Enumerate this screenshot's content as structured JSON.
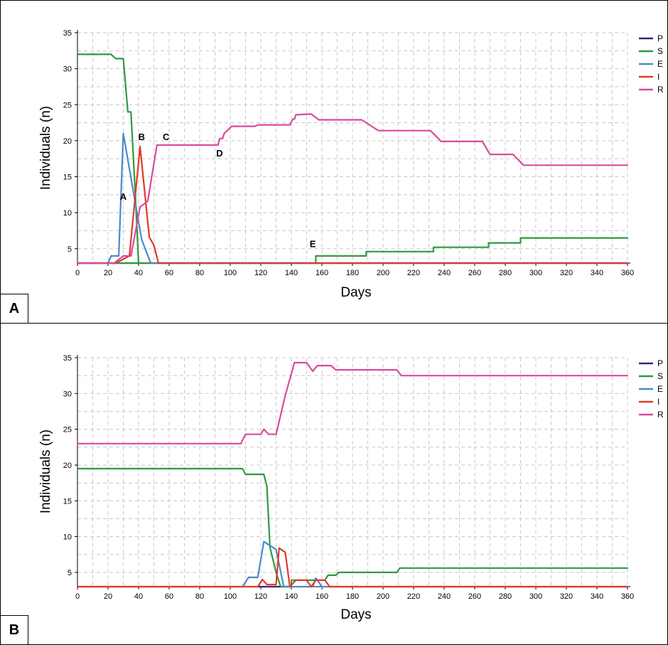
{
  "chart_data": [
    {
      "panel_label": "A",
      "type": "line",
      "xlabel": "Days",
      "ylabel": "Individuals (n)",
      "xlim": [
        0,
        360
      ],
      "ylim": [
        3,
        35
      ],
      "xticks": [
        0,
        20,
        40,
        60,
        80,
        100,
        120,
        140,
        160,
        180,
        200,
        220,
        240,
        260,
        280,
        300,
        320,
        340,
        360
      ],
      "yticks": [
        {
          "value": 5,
          "label": "5"
        },
        {
          "value": 10,
          "label": "10"
        },
        {
          "value": 15,
          "label": "15"
        },
        {
          "value": 20,
          "label": "20"
        },
        {
          "value": 25,
          "label": "25"
        },
        {
          "value": 30,
          "label": "30"
        },
        {
          "value": 35,
          "label": "35"
        }
      ],
      "grid": true,
      "legend_position": "right",
      "series": [
        {
          "name": "P",
          "color": "#2b2b7a",
          "points": [
            [
              0,
              3
            ],
            [
              360,
              3
            ]
          ]
        },
        {
          "name": "S",
          "color": "#2e9a3e",
          "points": [
            [
              0,
              3
            ],
            [
              156,
              3
            ],
            [
              156,
              4
            ],
            [
              189,
              4
            ],
            [
              189,
              4.6
            ],
            [
              233,
              4.6
            ],
            [
              233,
              5.2
            ],
            [
              269,
              5.2
            ],
            [
              269,
              5.8
            ],
            [
              290,
              5.8
            ],
            [
              290,
              6.5
            ],
            [
              360,
              6.5
            ]
          ]
        },
        {
          "name": "S",
          "color": "#2e9a3e",
          "points": [
            [
              0,
              32
            ],
            [
              22,
              32
            ],
            [
              25,
              31.4
            ],
            [
              30,
              31.4
            ],
            [
              33,
              24
            ],
            [
              35,
              24
            ],
            [
              38,
              12
            ],
            [
              40,
              3
            ]
          ]
        },
        {
          "name": "E",
          "color": "#4a8ac9",
          "points": [
            [
              0,
              3
            ],
            [
              20,
              3
            ],
            [
              22,
              4
            ],
            [
              27,
              4
            ],
            [
              30,
              21
            ],
            [
              42,
              6.3
            ],
            [
              45,
              4.6
            ],
            [
              48,
              3
            ],
            [
              360,
              3
            ]
          ]
        },
        {
          "name": "I",
          "color": "#e03a2b",
          "points": [
            [
              0,
              3
            ],
            [
              25,
              3
            ],
            [
              34,
              4
            ],
            [
              41,
              19.2
            ],
            [
              47,
              6.6
            ],
            [
              50,
              5.5
            ],
            [
              53,
              3
            ],
            [
              360,
              3
            ]
          ]
        },
        {
          "name": "R",
          "color": "#d94b9b",
          "points": [
            [
              0,
              3
            ],
            [
              24,
              3
            ],
            [
              30,
              4
            ],
            [
              35,
              4
            ],
            [
              41,
              10.8
            ],
            [
              46,
              11.6
            ],
            [
              52,
              19.4
            ],
            [
              92,
              19.4
            ],
            [
              93,
              20.3
            ],
            [
              95,
              20.3
            ],
            [
              96,
              21
            ],
            [
              101,
              22
            ],
            [
              116,
              22
            ],
            [
              118,
              22.2
            ],
            [
              139,
              22.2
            ],
            [
              141,
              23
            ],
            [
              142,
              23
            ],
            [
              143,
              23.6
            ],
            [
              153,
              23.7
            ],
            [
              158,
              22.9
            ],
            [
              186,
              22.9
            ],
            [
              197,
              21.4
            ],
            [
              231,
              21.4
            ],
            [
              238,
              19.9
            ],
            [
              265,
              19.9
            ],
            [
              270,
              18.1
            ],
            [
              285,
              18.1
            ],
            [
              292,
              16.6
            ],
            [
              360,
              16.6
            ]
          ]
        }
      ],
      "annotations": [
        {
          "text": "A",
          "x": 30,
          "y": 11.8
        },
        {
          "text": "B",
          "x": 42,
          "y": 20.1
        },
        {
          "text": "C",
          "x": 58,
          "y": 20.1
        },
        {
          "text": "D",
          "x": 93,
          "y": 17.8
        },
        {
          "text": "E",
          "x": 154,
          "y": 5.2
        }
      ]
    },
    {
      "panel_label": "B",
      "type": "line",
      "xlabel": "Days",
      "ylabel": "Individuals (n)",
      "xlim": [
        0,
        360
      ],
      "ylim": [
        3,
        35
      ],
      "xticks": [
        0,
        20,
        40,
        60,
        80,
        100,
        120,
        140,
        160,
        180,
        200,
        220,
        240,
        260,
        280,
        300,
        320,
        340,
        360
      ],
      "yticks": [
        {
          "value": 5,
          "label": "5"
        },
        {
          "value": 10,
          "label": "10"
        },
        {
          "value": 15,
          "label": "15"
        },
        {
          "value": 20,
          "label": "20"
        },
        {
          "value": 25,
          "label": "25"
        },
        {
          "value": 30,
          "label": "30"
        },
        {
          "value": 35,
          "label": "35"
        }
      ],
      "grid": true,
      "legend_position": "right",
      "series": [
        {
          "name": "P",
          "color": "#2b2b7a",
          "points": [
            [
              118,
              3
            ],
            [
              140,
              3
            ]
          ]
        },
        {
          "name": "S",
          "color": "#2e9a3e",
          "points": [
            [
              0,
              19.5
            ],
            [
              108,
              19.5
            ],
            [
              110,
              18.7
            ],
            [
              122,
              18.7
            ],
            [
              124,
              17
            ],
            [
              126,
              8.5
            ],
            [
              130,
              5
            ],
            [
              133,
              3
            ],
            [
              140,
              3
            ],
            [
              140,
              3.9
            ],
            [
              162,
              3.9
            ],
            [
              164,
              4.6
            ],
            [
              169,
              4.6
            ],
            [
              171,
              5
            ],
            [
              209,
              5
            ],
            [
              211,
              5.6
            ],
            [
              360,
              5.6
            ]
          ]
        },
        {
          "name": "E",
          "color": "#4a8ac9",
          "points": [
            [
              0,
              3
            ],
            [
              108,
              3
            ],
            [
              112,
              4.3
            ],
            [
              118,
              4.3
            ],
            [
              122,
              9.3
            ],
            [
              130,
              8.2
            ],
            [
              135,
              3
            ],
            [
              154,
              3
            ],
            [
              156,
              4.2
            ],
            [
              160,
              3
            ],
            [
              360,
              3
            ]
          ]
        },
        {
          "name": "I",
          "color": "#e03a2b",
          "points": [
            [
              0,
              3
            ],
            [
              118,
              3
            ],
            [
              121,
              4
            ],
            [
              124,
              3.3
            ],
            [
              130,
              3.3
            ],
            [
              132,
              8.4
            ],
            [
              136,
              7.8
            ],
            [
              139,
              3
            ],
            [
              143,
              3.9
            ],
            [
              150,
              3.9
            ],
            [
              153,
              3
            ],
            [
              156,
              3.9
            ],
            [
              162,
              3.9
            ],
            [
              165,
              3
            ],
            [
              360,
              3
            ]
          ]
        },
        {
          "name": "R",
          "color": "#d94b9b",
          "points": [
            [
              0,
              23
            ],
            [
              107,
              23
            ],
            [
              110,
              24.3
            ],
            [
              120,
              24.3
            ],
            [
              122,
              25
            ],
            [
              125,
              24.3
            ],
            [
              130,
              24.3
            ],
            [
              136,
              29.7
            ],
            [
              142,
              34.3
            ],
            [
              150,
              34.3
            ],
            [
              154,
              33.1
            ],
            [
              157,
              33.9
            ],
            [
              166,
              33.9
            ],
            [
              169,
              33.3
            ],
            [
              209,
              33.3
            ],
            [
              212,
              32.5
            ],
            [
              360,
              32.5
            ]
          ]
        }
      ],
      "annotations": []
    }
  ]
}
